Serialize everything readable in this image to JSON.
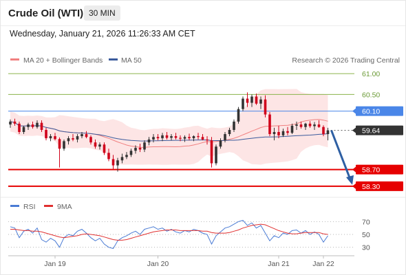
{
  "header": {
    "instrument": "Crude Oil (WTI)",
    "interval": "30 MIN",
    "datetime": "Wednesday, January 21, 2026 11:26:33 AM CET"
  },
  "legend": {
    "ma20": "MA 20 + Bollinger Bands",
    "ma50": "MA 50",
    "copyright": "Research © 2026 Trading Central"
  },
  "rsi_legend": {
    "rsi": "RSI",
    "ma9": "9MA"
  },
  "colors": {
    "bullish": "#333333",
    "bearish": "#d0021b",
    "ma20": "#f08080",
    "band_fill": "#fde0e0",
    "ma50": "#3a5a9c",
    "support": "#e60000",
    "pivot": "#4a86e8",
    "upper_target": "#8ab34a",
    "price_tag": "#333333",
    "arrow": "#2e5fa3",
    "rsi": "#4a7bd4",
    "rsi_ma": "#e03030"
  },
  "chart_data": [
    {
      "type": "candlestick",
      "title": "Crude Oil (WTI)",
      "x_tick_labels": [
        "Jan 19",
        "Jan 20",
        "Jan 21",
        "Jan 22"
      ],
      "ylim": [
        58.1,
        61.1
      ],
      "y_tick_labels": [
        "61.00",
        "60.50",
        "60.10",
        "59.64",
        "58.70",
        "58.30"
      ],
      "levels": [
        {
          "value": 61.0,
          "label": "61.00",
          "kind": "resistance"
        },
        {
          "value": 60.5,
          "label": "60.50",
          "kind": "resistance"
        },
        {
          "value": 60.1,
          "label": "60.10",
          "kind": "pivot"
        },
        {
          "value": 59.64,
          "label": "59.64",
          "kind": "last_price"
        },
        {
          "value": 58.7,
          "label": "58.70",
          "kind": "support"
        },
        {
          "value": 58.3,
          "label": "58.30",
          "kind": "support"
        }
      ],
      "last_price": 59.64,
      "forecast_target": 58.3,
      "grid": false,
      "legend_position": "top-left",
      "candles": [
        [
          59.78,
          59.9,
          59.7,
          59.85
        ],
        [
          59.85,
          59.92,
          59.75,
          59.8
        ],
        [
          59.8,
          59.85,
          59.55,
          59.6
        ],
        [
          59.6,
          59.75,
          59.55,
          59.72
        ],
        [
          59.72,
          59.82,
          59.65,
          59.78
        ],
        [
          59.78,
          59.85,
          59.68,
          59.72
        ],
        [
          59.72,
          59.88,
          59.68,
          59.82
        ],
        [
          59.82,
          59.88,
          59.6,
          59.65
        ],
        [
          59.65,
          59.7,
          59.4,
          59.45
        ],
        [
          59.45,
          59.55,
          59.38,
          59.5
        ],
        [
          59.5,
          59.58,
          59.4,
          59.43
        ],
        [
          59.43,
          59.47,
          58.75,
          59.2
        ],
        [
          59.2,
          59.42,
          59.15,
          59.38
        ],
        [
          59.38,
          59.5,
          59.3,
          59.45
        ],
        [
          59.45,
          59.55,
          59.38,
          59.42
        ],
        [
          59.42,
          59.55,
          59.35,
          59.5
        ],
        [
          59.5,
          59.6,
          59.45,
          59.55
        ],
        [
          59.55,
          59.62,
          59.45,
          59.48
        ],
        [
          59.48,
          59.52,
          59.3,
          59.35
        ],
        [
          59.35,
          59.42,
          59.2,
          59.25
        ],
        [
          59.25,
          59.35,
          59.18,
          59.3
        ],
        [
          59.3,
          59.35,
          59.05,
          59.1
        ],
        [
          59.1,
          59.2,
          58.9,
          58.95
        ],
        [
          58.95,
          59.05,
          58.7,
          58.8
        ],
        [
          58.8,
          58.98,
          58.65,
          58.92
        ],
        [
          58.92,
          59.08,
          58.85,
          59.0
        ],
        [
          59.0,
          59.12,
          58.95,
          59.05
        ],
        [
          59.05,
          59.2,
          59.0,
          59.15
        ],
        [
          59.15,
          59.28,
          59.08,
          59.22
        ],
        [
          59.22,
          59.32,
          59.12,
          59.18
        ],
        [
          59.18,
          59.4,
          59.12,
          59.35
        ],
        [
          59.35,
          59.48,
          59.28,
          59.42
        ],
        [
          59.42,
          59.55,
          59.35,
          59.48
        ],
        [
          59.48,
          59.55,
          59.4,
          59.45
        ],
        [
          59.45,
          59.58,
          59.38,
          59.52
        ],
        [
          59.52,
          59.6,
          59.42,
          59.46
        ],
        [
          59.46,
          59.55,
          59.4,
          59.5
        ],
        [
          59.5,
          59.58,
          59.42,
          59.46
        ],
        [
          59.46,
          59.52,
          59.38,
          59.44
        ],
        [
          59.44,
          59.52,
          59.36,
          59.48
        ],
        [
          59.48,
          59.56,
          59.4,
          59.45
        ],
        [
          59.45,
          59.52,
          59.38,
          59.5
        ],
        [
          59.5,
          59.58,
          59.42,
          59.48
        ],
        [
          59.48,
          59.55,
          59.4,
          59.42
        ],
        [
          59.42,
          59.5,
          59.3,
          59.4
        ],
        [
          59.4,
          59.48,
          58.75,
          58.85
        ],
        [
          58.85,
          59.3,
          58.8,
          59.25
        ],
        [
          59.25,
          59.45,
          59.2,
          59.4
        ],
        [
          59.4,
          59.6,
          59.35,
          59.55
        ],
        [
          59.55,
          59.7,
          59.5,
          59.65
        ],
        [
          59.65,
          59.9,
          59.6,
          59.85
        ],
        [
          59.85,
          60.2,
          59.8,
          60.15
        ],
        [
          60.15,
          60.45,
          60.1,
          60.4
        ],
        [
          60.4,
          60.55,
          60.2,
          60.3
        ],
        [
          60.3,
          60.5,
          60.2,
          60.45
        ],
        [
          60.45,
          60.52,
          60.25,
          60.28
        ],
        [
          60.28,
          60.45,
          60.15,
          60.38
        ],
        [
          60.38,
          60.48,
          59.95,
          60.02
        ],
        [
          60.02,
          60.08,
          59.5,
          59.55
        ],
        [
          59.55,
          59.7,
          59.4,
          59.6
        ],
        [
          59.6,
          59.75,
          59.45,
          59.52
        ],
        [
          59.52,
          59.68,
          59.48,
          59.62
        ],
        [
          59.62,
          59.72,
          59.52,
          59.58
        ],
        [
          59.58,
          59.8,
          59.55,
          59.75
        ],
        [
          59.75,
          59.85,
          59.65,
          59.78
        ],
        [
          59.78,
          59.85,
          59.68,
          59.72
        ],
        [
          59.72,
          59.82,
          59.65,
          59.8
        ],
        [
          59.8,
          59.86,
          59.7,
          59.74
        ],
        [
          59.74,
          59.84,
          59.65,
          59.78
        ],
        [
          59.78,
          59.88,
          59.7,
          59.72
        ],
        [
          59.72,
          59.76,
          59.5,
          59.55
        ],
        [
          59.55,
          59.7,
          59.4,
          59.64
        ]
      ]
    },
    {
      "type": "line",
      "title": "RSI",
      "ylim": [
        20,
        80
      ],
      "y_ticks": [
        70,
        50,
        30
      ],
      "y_tick_labels": [
        "70",
        "50",
        "30"
      ],
      "grid": false,
      "legend_position": "top-left",
      "series": [
        {
          "name": "RSI",
          "values": [
            62,
            60,
            45,
            55,
            58,
            52,
            60,
            42,
            38,
            44,
            40,
            30,
            45,
            50,
            48,
            55,
            58,
            52,
            45,
            40,
            44,
            35,
            30,
            28,
            40,
            45,
            48,
            52,
            55,
            50,
            58,
            60,
            62,
            58,
            60,
            55,
            58,
            54,
            52,
            56,
            54,
            58,
            56,
            52,
            50,
            35,
            48,
            54,
            60,
            62,
            66,
            70,
            72,
            64,
            68,
            60,
            64,
            52,
            40,
            48,
            45,
            52,
            50,
            56,
            57,
            52,
            56,
            50,
            54,
            50,
            38,
            48
          ]
        },
        {
          "name": "9MA",
          "values": [
            58,
            58,
            57,
            56,
            56,
            55,
            55,
            54,
            52,
            50,
            48,
            46,
            45,
            46,
            47,
            48,
            50,
            51,
            50,
            49,
            48,
            46,
            44,
            42,
            41,
            41,
            42,
            44,
            46,
            48,
            50,
            52,
            54,
            55,
            56,
            57,
            57,
            57,
            56,
            56,
            56,
            56,
            56,
            55,
            55,
            53,
            52,
            52,
            52,
            53,
            55,
            57,
            60,
            62,
            64,
            65,
            66,
            65,
            62,
            59,
            56,
            54,
            52,
            51,
            51,
            52,
            53,
            53,
            53,
            53,
            51,
            50
          ]
        }
      ]
    }
  ]
}
